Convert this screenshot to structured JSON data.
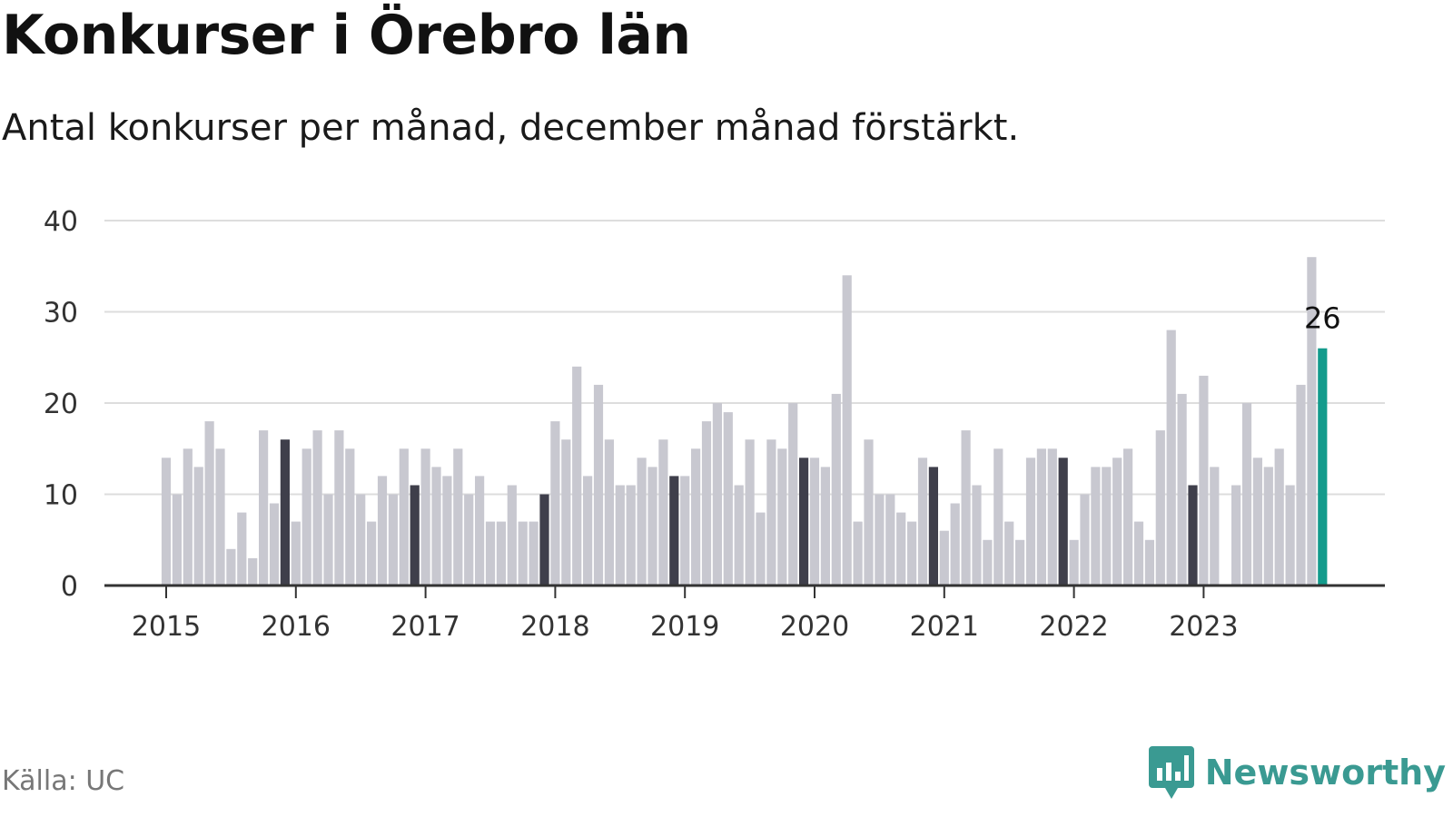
{
  "title": "Konkurser i Örebro län",
  "subtitle": "Antal konkurser per månad, december månad förstärkt.",
  "source": "Källa: UC",
  "brand": {
    "name": "Newsworthy",
    "icon": "newsworthy-logo-icon"
  },
  "colors": {
    "bar": "#c8c8d0",
    "december": "#3f3f4b",
    "highlight": "#139b8c",
    "grid": "#dddddd",
    "axis": "#333333"
  },
  "chart_data": {
    "type": "bar",
    "title": "Konkurser i Örebro län",
    "subtitle": "Antal konkurser per månad, december månad förstärkt.",
    "xlabel": "",
    "ylabel": "",
    "ylim": [
      0,
      40
    ],
    "y_ticks": [
      0,
      10,
      20,
      30,
      40
    ],
    "x_ticks": [
      "2015",
      "2016",
      "2017",
      "2018",
      "2019",
      "2020",
      "2021",
      "2022",
      "2023"
    ],
    "start": "2015-01",
    "grid": true,
    "values": [
      14,
      10,
      15,
      13,
      18,
      15,
      4,
      8,
      3,
      17,
      9,
      16,
      7,
      15,
      17,
      10,
      17,
      15,
      10,
      7,
      12,
      10,
      15,
      11,
      15,
      13,
      12,
      15,
      10,
      12,
      7,
      7,
      11,
      7,
      7,
      10,
      18,
      16,
      24,
      12,
      22,
      16,
      11,
      11,
      14,
      13,
      16,
      12,
      12,
      15,
      18,
      20,
      19,
      11,
      16,
      8,
      16,
      15,
      20,
      14,
      14,
      13,
      21,
      34,
      7,
      16,
      10,
      10,
      8,
      7,
      14,
      13,
      6,
      9,
      17,
      11,
      5,
      15,
      7,
      5,
      14,
      15,
      15,
      14,
      5,
      10,
      13,
      13,
      14,
      15,
      7,
      5,
      17,
      28,
      21,
      11,
      23,
      13,
      0,
      11,
      20,
      14,
      13,
      15,
      11,
      22,
      36,
      26
    ],
    "emphasis": "december",
    "highlight": {
      "index": 107,
      "label": "26"
    }
  }
}
